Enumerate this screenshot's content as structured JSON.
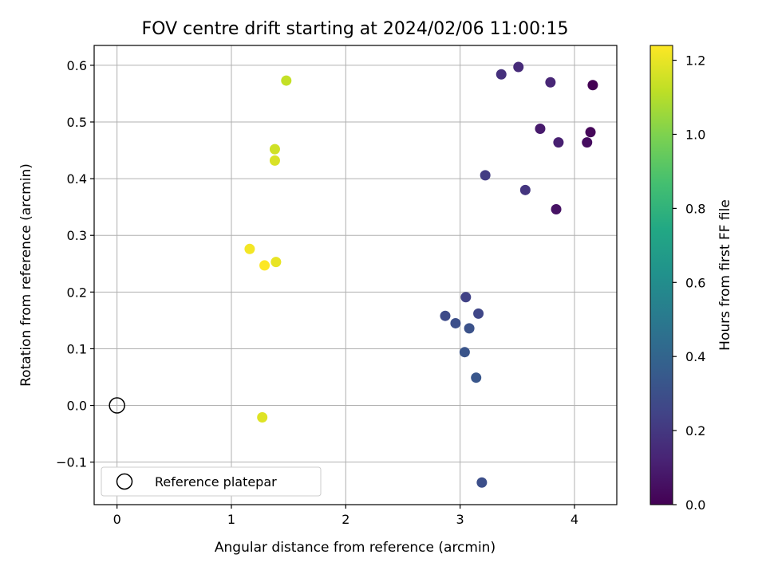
{
  "chart_data": {
    "type": "scatter",
    "title": "FOV centre drift starting at 2024/02/06 11:00:15",
    "xlabel": "Angular distance from reference (arcmin)",
    "ylabel": "Rotation from reference (arcmin)",
    "xlim": [
      -0.2,
      4.37
    ],
    "ylim": [
      -0.175,
      0.635
    ],
    "xticks": [
      0,
      1,
      2,
      3,
      4
    ],
    "xtick_labels": [
      "0",
      "1",
      "2",
      "3",
      "4"
    ],
    "yticks": [
      -0.1,
      0.0,
      0.1,
      0.2,
      0.3,
      0.4,
      0.5,
      0.6
    ],
    "ytick_labels": [
      "−0.1",
      "0.0",
      "0.1",
      "0.2",
      "0.3",
      "0.4",
      "0.5",
      "0.6"
    ],
    "grid": true,
    "colormap": "viridis",
    "colorbar": {
      "label": "Hours from first FF file",
      "range": [
        0.0,
        1.24
      ],
      "ticks": [
        0.0,
        0.2,
        0.4,
        0.6,
        0.8,
        1.0,
        1.2
      ],
      "tick_labels": [
        "0.0",
        "0.2",
        "0.4",
        "0.6",
        "0.8",
        "1.0",
        "1.2"
      ]
    },
    "reference": {
      "x": 0,
      "y": 0,
      "label": "Reference platepar"
    },
    "legend_placement": "lower-left",
    "points": [
      {
        "x": 4.16,
        "y": 0.565,
        "t": 0.0
      },
      {
        "x": 4.14,
        "y": 0.482,
        "t": 0.02
      },
      {
        "x": 4.11,
        "y": 0.464,
        "t": 0.04
      },
      {
        "x": 3.84,
        "y": 0.346,
        "t": 0.06
      },
      {
        "x": 3.7,
        "y": 0.488,
        "t": 0.09
      },
      {
        "x": 3.86,
        "y": 0.464,
        "t": 0.11
      },
      {
        "x": 3.79,
        "y": 0.57,
        "t": 0.13
      },
      {
        "x": 3.51,
        "y": 0.597,
        "t": 0.15
      },
      {
        "x": 3.36,
        "y": 0.584,
        "t": 0.17
      },
      {
        "x": 3.57,
        "y": 0.38,
        "t": 0.19
      },
      {
        "x": 3.22,
        "y": 0.406,
        "t": 0.22
      },
      {
        "x": 3.05,
        "y": 0.191,
        "t": 0.24
      },
      {
        "x": 3.16,
        "y": 0.162,
        "t": 0.26
      },
      {
        "x": 2.87,
        "y": 0.158,
        "t": 0.28
      },
      {
        "x": 2.96,
        "y": 0.145,
        "t": 0.3
      },
      {
        "x": 3.08,
        "y": 0.136,
        "t": 0.31
      },
      {
        "x": 3.04,
        "y": 0.094,
        "t": 0.32
      },
      {
        "x": 3.14,
        "y": 0.049,
        "t": 0.33
      },
      {
        "x": 3.19,
        "y": -0.136,
        "t": 0.3
      },
      {
        "x": 1.48,
        "y": 0.573,
        "t": 1.13
      },
      {
        "x": 1.38,
        "y": 0.452,
        "t": 1.15
      },
      {
        "x": 1.38,
        "y": 0.432,
        "t": 1.17
      },
      {
        "x": 1.27,
        "y": -0.021,
        "t": 1.18
      },
      {
        "x": 1.39,
        "y": 0.253,
        "t": 1.2
      },
      {
        "x": 1.16,
        "y": 0.276,
        "t": 1.22
      },
      {
        "x": 1.29,
        "y": 0.247,
        "t": 1.24
      }
    ]
  }
}
